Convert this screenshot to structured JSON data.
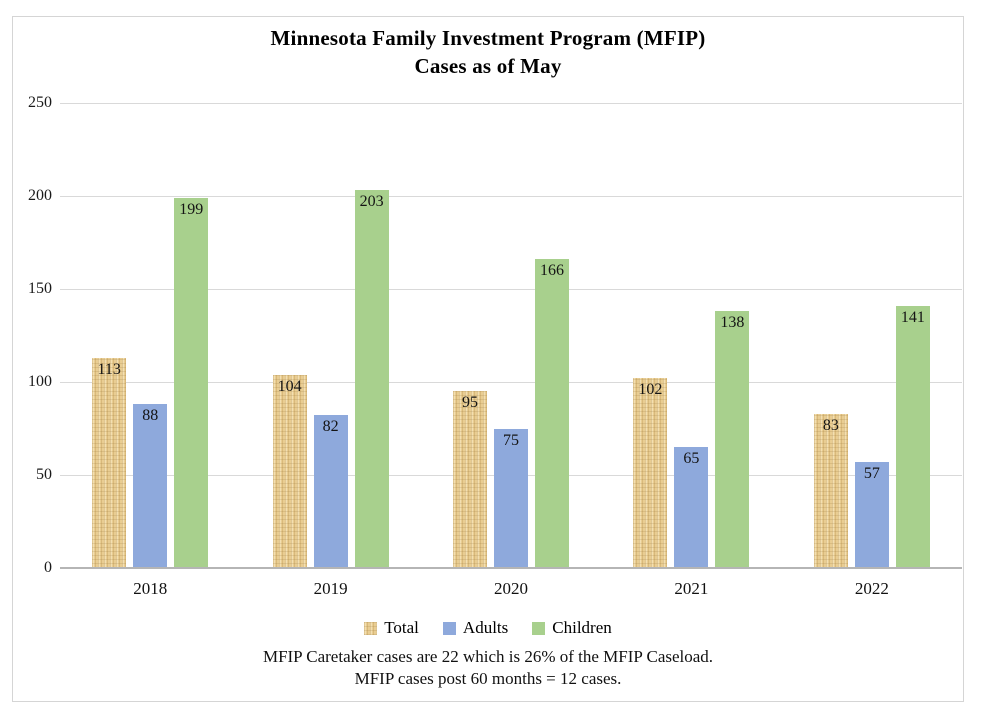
{
  "title": {
    "line1": "Minnesota Family Investment Program (MFIP)",
    "line2": "Cases as of May"
  },
  "chart_data": {
    "type": "bar",
    "title": "Minnesota Family Investment Program (MFIP) Cases as of May",
    "categories": [
      "2018",
      "2019",
      "2020",
      "2021",
      "2022"
    ],
    "series": [
      {
        "name": "Total",
        "color": "#e9cd92",
        "textured": true,
        "values": [
          113,
          104,
          95,
          102,
          83
        ]
      },
      {
        "name": "Adults",
        "color": "#8ea9dc",
        "textured": false,
        "values": [
          88,
          82,
          75,
          65,
          57
        ]
      },
      {
        "name": "Children",
        "color": "#a8d08d",
        "textured": false,
        "values": [
          199,
          203,
          166,
          138,
          141
        ]
      }
    ],
    "ylim": [
      0,
      250
    ],
    "yticks": [
      0,
      50,
      100,
      150,
      200,
      250
    ],
    "grid": true,
    "data_labels": "inside-top",
    "legend_position": "bottom",
    "xlabel": "",
    "ylabel": ""
  },
  "notes": {
    "line1": "MFIP Caretaker cases are 22 which is 26% of the MFIP Caseload.",
    "line2": "MFIP cases post 60 months = 12 cases."
  },
  "colors": {
    "grid": "#d9d9d9",
    "axis": "#b5b5b5",
    "frame_border": "#d5d5d5",
    "label_text": "#141414"
  }
}
